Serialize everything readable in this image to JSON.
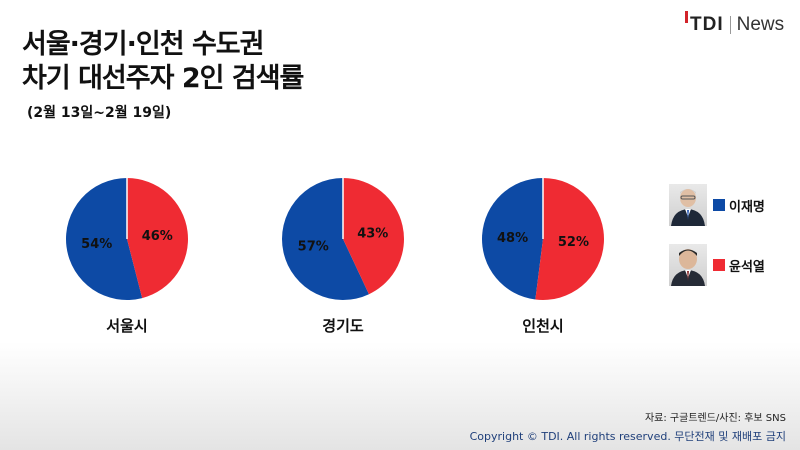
{
  "header": {
    "title_line1": "서울·경기·인천 수도권",
    "title_line2": "차기 대선주자 2인 검색률",
    "subtitle": "(2월 13일~2월 19일)"
  },
  "logo": {
    "brand": "TDI",
    "suffix": "News"
  },
  "legend": [
    {
      "name": "이재명",
      "color": "#0d4aa5"
    },
    {
      "name": "윤석열",
      "color": "#ef2b33"
    }
  ],
  "chart_data": {
    "type": "pie",
    "series_names": [
      "이재명",
      "윤석열"
    ],
    "colors": [
      "#0d4aa5",
      "#ef2b33"
    ],
    "pies": [
      {
        "label": "서울시",
        "values": [
          54,
          46
        ]
      },
      {
        "label": "경기도",
        "values": [
          57,
          43
        ]
      },
      {
        "label": "인천시",
        "values": [
          48,
          52
        ]
      }
    ]
  },
  "footer": {
    "source": "자료: 구글트렌드/사진: 후보 SNS",
    "copyright": "Copyright © TDI. All rights reserved. 무단전재 및 재배포 금지"
  }
}
